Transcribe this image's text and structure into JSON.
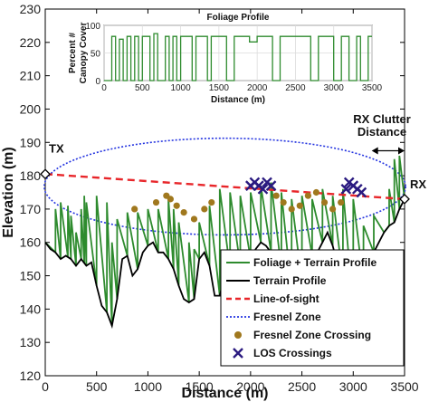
{
  "chart_data": [
    {
      "type": "line",
      "xlabel": "Distance (m)",
      "ylabel": "Elevation (m)",
      "xlim": [
        0,
        3500
      ],
      "ylim": [
        120,
        230
      ],
      "xticks": [
        "0",
        "500",
        "1000",
        "1500",
        "2000",
        "2500",
        "3000",
        "3500"
      ],
      "yticks": [
        "120",
        "130",
        "140",
        "150",
        "160",
        "170",
        "180",
        "190",
        "200",
        "210",
        "220",
        "230"
      ],
      "grid": false,
      "legend_position": "bottom-right",
      "annotations": {
        "tx": "TX",
        "rx": "RX",
        "rx_clutter_line1": "RX Clutter",
        "rx_clutter_line2": "Distance"
      },
      "legend": [
        "Foliage + Terrain Profile",
        "Terrain Profile",
        "Line-of-sight",
        "Fresnel Zone",
        "Fresnel Zone Crossing",
        "LOS Crossings"
      ],
      "colors": {
        "foliage": "#2e8b2e",
        "terrain": "#000000",
        "los": "#e8262a",
        "fresnel": "#2434e0",
        "fresnel_crossing": "#a0781e",
        "los_crossing": "#2a1a80"
      },
      "series": [
        {
          "name": "Terrain Profile",
          "x": [
            0,
            50,
            100,
            150,
            200,
            250,
            300,
            350,
            400,
            450,
            500,
            550,
            600,
            650,
            700,
            750,
            800,
            850,
            900,
            950,
            1000,
            1050,
            1100,
            1150,
            1200,
            1250,
            1300,
            1350,
            1400,
            1450,
            1500,
            1550,
            1600,
            1650,
            1700,
            1750,
            1800,
            1850,
            1900,
            1950,
            2000,
            2050,
            2100,
            2150,
            2200,
            2250,
            2300,
            2350,
            2400,
            2450,
            2500,
            2550,
            2600,
            2650,
            2700,
            2750,
            2800,
            2850,
            2900,
            2950,
            3000,
            3050,
            3100,
            3150,
            3200,
            3250,
            3300,
            3350,
            3400,
            3450,
            3500
          ],
          "y": [
            160,
            158,
            157,
            155,
            156,
            155,
            153,
            155,
            153,
            154,
            147,
            141,
            139,
            135,
            143,
            155,
            156,
            150,
            152,
            157,
            159,
            160,
            157,
            157,
            155,
            152,
            147,
            143,
            142,
            143,
            155,
            157,
            153,
            144,
            144,
            150,
            152,
            155,
            153,
            153,
            155,
            158,
            160,
            159,
            157,
            154,
            152,
            148,
            145,
            146,
            148,
            152,
            156,
            157,
            160,
            163,
            159,
            153,
            149,
            145,
            140,
            141,
            148,
            154,
            157,
            160,
            163,
            165,
            166,
            170,
            173
          ]
        },
        {
          "name": "Line-of-sight",
          "x": [
            0,
            3500
          ],
          "y": [
            180.5,
            173
          ]
        },
        {
          "name": "Fresnel Zone",
          "center": [
            1750,
            176.75
          ],
          "half_width_x": 1760,
          "half_height_y": 14.5
        },
        {
          "name": "Foliage + Terrain Profile",
          "x": [
            0,
            100,
            150,
            220,
            250,
            300,
            350,
            380,
            400,
            500,
            600,
            650,
            700,
            800,
            900,
            1000,
            1100,
            1200,
            1250,
            1300,
            1400,
            1450,
            1500,
            1600,
            1700,
            1800,
            1900,
            2000,
            2100,
            2200,
            2300,
            2400,
            2500,
            2600,
            2700,
            2800,
            2900,
            3000,
            3100,
            3200,
            3300,
            3350,
            3400,
            3450,
            3500
          ],
          "y": [
            160,
            170,
            172,
            171,
            168,
            163,
            170,
            174,
            172,
            174,
            172,
            160,
            167,
            169,
            169,
            170,
            170,
            173,
            170,
            166,
            160,
            158,
            166,
            171,
            176,
            175,
            174,
            175,
            177,
            178,
            175,
            173,
            174,
            173,
            176,
            174,
            176,
            173,
            165,
            168,
            163,
            176,
            185,
            186,
            173
          ]
        },
        {
          "name": "Fresnel Zone Crossing",
          "x": [
            870,
            1080,
            1180,
            1220,
            1280,
            1350,
            1450,
            1550,
            1620,
            2250,
            2320,
            2400,
            2480,
            2560,
            2640,
            2720,
            2800,
            2880
          ],
          "y": [
            170,
            172,
            174,
            173,
            171,
            169,
            167,
            170,
            172,
            174,
            172,
            170,
            171,
            174,
            175,
            172,
            170,
            172
          ]
        },
        {
          "name": "LOS Crossings",
          "x": [
            2000,
            2040,
            2080,
            2120,
            2160,
            2200,
            2930,
            2960,
            3000,
            3040,
            3080
          ],
          "y": [
            177,
            178,
            177,
            176,
            178,
            177,
            176,
            178,
            177,
            176,
            175
          ]
        }
      ]
    },
    {
      "type": "line",
      "title": "Foliage Profile",
      "xlabel": "Distance (m)",
      "ylabel_line1": "Percent #",
      "ylabel_line2": "Canopy Cover",
      "xlim": [
        0,
        3500
      ],
      "ylim": [
        0,
        100
      ],
      "xticks": [
        "0",
        "500",
        "1000",
        "1500",
        "2000",
        "2500",
        "3000",
        "3500"
      ],
      "yticks": [
        "0",
        "50",
        "100"
      ],
      "grid": true,
      "series": [
        {
          "name": "Canopy Cover",
          "x": [
            0,
            100,
            150,
            200,
            250,
            300,
            350,
            400,
            450,
            500,
            600,
            650,
            700,
            800,
            850,
            900,
            950,
            1000,
            1100,
            1150,
            1200,
            1300,
            1350,
            1400,
            1500,
            1600,
            1700,
            1800,
            1900,
            2000,
            2100,
            2200,
            2300,
            2400,
            2500,
            2600,
            2700,
            2800,
            2900,
            3000,
            3100,
            3200,
            3300,
            3350,
            3400,
            3450,
            3500
          ],
          "y": [
            0,
            80,
            0,
            75,
            0,
            80,
            0,
            80,
            0,
            80,
            0,
            85,
            0,
            80,
            0,
            80,
            0,
            80,
            80,
            0,
            80,
            80,
            0,
            80,
            80,
            0,
            80,
            80,
            70,
            80,
            80,
            0,
            80,
            80,
            80,
            80,
            0,
            80,
            80,
            0,
            80,
            0,
            80,
            0,
            0,
            80,
            80
          ]
        }
      ]
    }
  ]
}
